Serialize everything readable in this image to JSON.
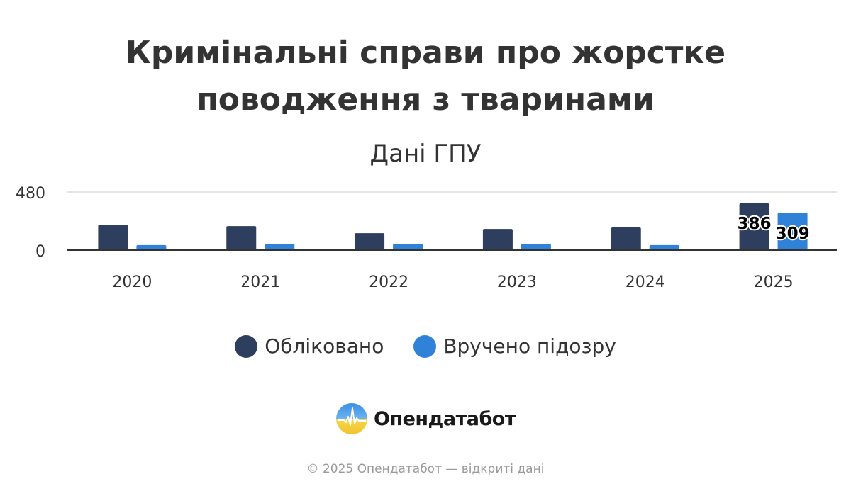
{
  "title_line1": "Кримінальні справи про жорстке",
  "title_line2": "поводження з тваринами",
  "subtitle": "Дані ГПУ",
  "chart_data": {
    "type": "bar",
    "categories": [
      "2020",
      "2021",
      "2022",
      "2023",
      "2024",
      "2025"
    ],
    "series": [
      {
        "name": "Обліковано",
        "values": [
          210,
          198,
          140,
          175,
          187,
          386
        ],
        "color": "#2d3e5f"
      },
      {
        "name": "Вручено підозру",
        "values": [
          42,
          52,
          52,
          52,
          42,
          309
        ],
        "color": "#2f82d8"
      }
    ],
    "data_labels": {
      "Обліковано": {
        "2025": "386"
      },
      "Вручено підозру": {
        "2025": "309"
      }
    },
    "y_ticks": [
      "0",
      "480"
    ],
    "ylim": [
      0,
      480
    ],
    "grid": true,
    "legend_position": "bottom"
  },
  "brand": {
    "name": "Опендатабот",
    "icon": "opendatabot-logo-icon"
  },
  "footer": "© 2025 Опендатабот — відкриті дані"
}
